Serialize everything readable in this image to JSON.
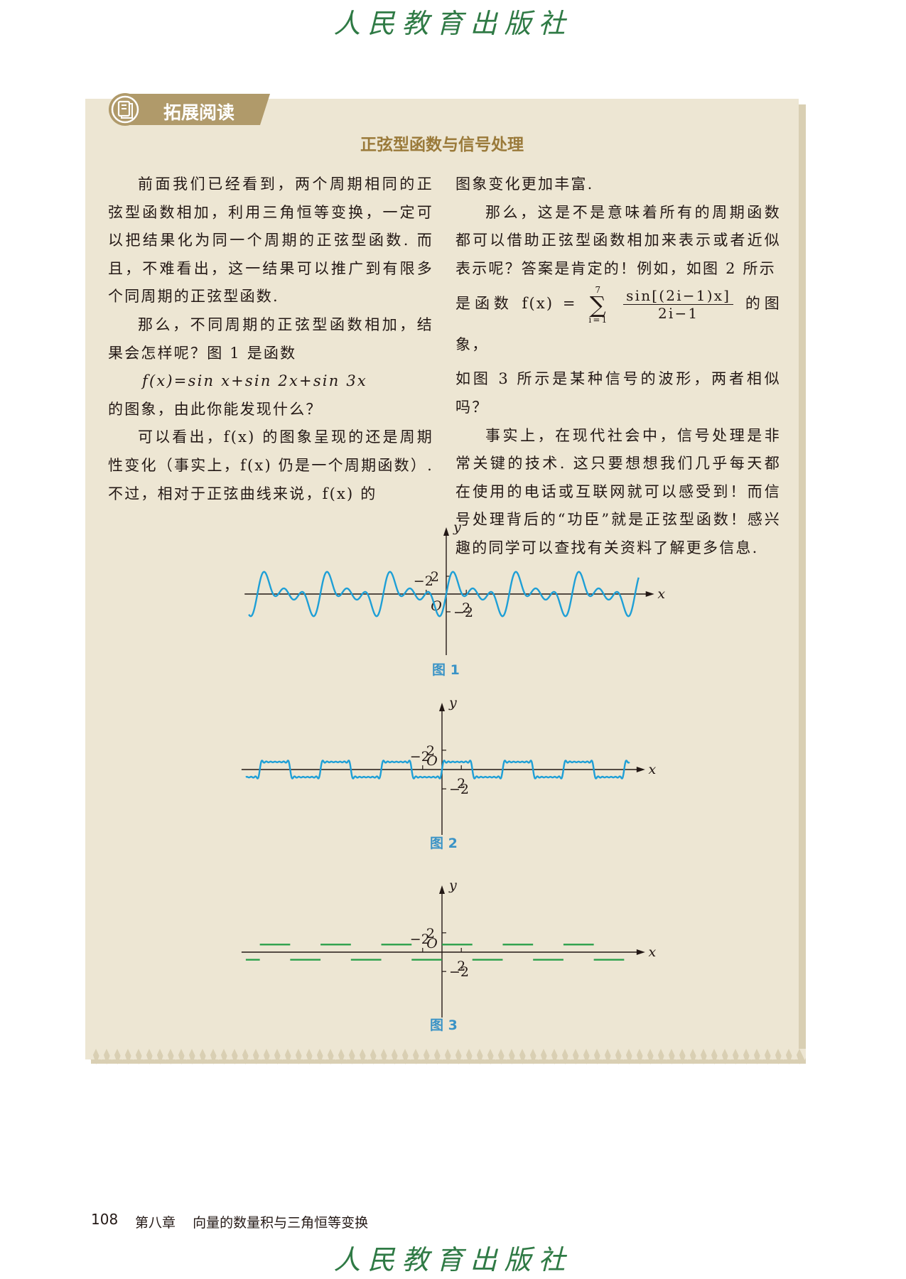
{
  "header": {
    "logo": "人民教育出版社"
  },
  "footer": {
    "logo": "人民教育出版社",
    "page_number": "108",
    "chapter": "第八章",
    "chapter_title": "向量的数量积与三角恒等变换"
  },
  "section": {
    "badge": "拓展阅读",
    "title": "正弦型函数与信号处理"
  },
  "left_column": {
    "p1": "前面我们已经看到，两个周期相同的正弦型函数相加，利用三角恒等变换，一定可以把结果化为同一个周期的正弦型函数. 而且，不难看出，这一结果可以推广到有限多个同周期的正弦型函数.",
    "p2": "那么，不同周期的正弦型函数相加，结果会怎样呢？图 1 是函数",
    "formula": "f(x)=sin x+sin 2x+sin 3x",
    "p3": "的图象，由此你能发现什么？",
    "p4": "可以看出，f(x) 的图象呈现的还是周期性变化（事实上，f(x) 仍是一个周期函数）. 不过，相对于正弦曲线来说，f(x) 的"
  },
  "right_column": {
    "p1": "图象变化更加丰富.",
    "p2": "那么，这是不是意味着所有的周期函数都可以借助正弦型函数相加来表示或者近似表示呢？答案是肯定的！例如，如图 2 所示",
    "formula_pre": "是函数 f(x) =",
    "sum_top": "7",
    "sum_symbol": "∑",
    "sum_bottom": "i=1",
    "frac_num": "sin[(2i−1)x]",
    "frac_den": "2i−1",
    "formula_post": "的图象，",
    "p3": "如图 3 所示是某种信号的波形，两者相似吗？",
    "p4": "事实上，在现代社会中，信号处理是非常关键的技术. 这只要想想我们几乎每天都在使用的电话或互联网就可以感受到！而信号处理背后的“功臣”就是正弦型函数！感兴趣的同学可以查找有关资料了解更多信息."
  },
  "figures": [
    {
      "caption": "图 1",
      "function": "sin x + sin 2x + sin 3x",
      "labels": {
        "y": "y",
        "x": "x",
        "origin": "O",
        "ypos": "2",
        "yneg": "−2",
        "xpos": "2",
        "xneg": "−2"
      },
      "colors": {
        "curve": "#1e9fd6"
      }
    },
    {
      "caption": "图 2",
      "function": "sum_{i=1}^{7} sin((2i−1)x)/(2i−1)",
      "labels": {
        "y": "y",
        "x": "x",
        "origin": "O",
        "ypos": "2",
        "yneg": "−2",
        "xpos": "2",
        "xneg": "−2"
      },
      "colors": {
        "curve": "#1e9fd6"
      }
    },
    {
      "caption": "图 3",
      "function": "square wave",
      "labels": {
        "y": "y",
        "x": "x",
        "origin": "O",
        "ypos": "2",
        "yneg": "−2",
        "xpos": "2",
        "xneg": "−2"
      },
      "colors": {
        "curve": "#2aa04a"
      }
    }
  ],
  "colors": {
    "panel": "#ede6d3",
    "badge": "#b09a6a",
    "title": "#9a7a3a",
    "logo": "#2f7a45",
    "caption": "#3a93c6"
  }
}
